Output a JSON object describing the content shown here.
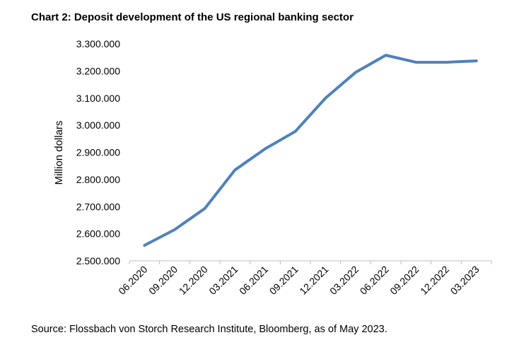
{
  "chart_data": {
    "type": "line",
    "title": "Chart 2: Deposit development of the US regional banking sector",
    "ylabel": "Million dollars",
    "xlabel": "",
    "categories": [
      "06.2020",
      "09.2020",
      "12.2020",
      "03.2021",
      "06.2021",
      "09.2021",
      "12.2021",
      "03.2022",
      "06.2022",
      "09.2022",
      "12.2022",
      "03.2023"
    ],
    "series": [
      {
        "values": [
          2557000,
          2615000,
          2693000,
          2835000,
          2913000,
          2977000,
          3100000,
          3195000,
          3258000,
          3232000,
          3232000,
          3237000
        ]
      }
    ],
    "ylim": [
      2500000,
      3300000
    ],
    "yticks": [
      2500000,
      2600000,
      2700000,
      2800000,
      2900000,
      3000000,
      3100000,
      3200000,
      3300000
    ],
    "ytick_labels": [
      "2.500.000",
      "2.600.000",
      "2.700.000",
      "2.800.000",
      "2.900.000",
      "3.000.000",
      "3.100.000",
      "3.200.000",
      "3.300.000"
    ],
    "grid": false,
    "line_color": "#4f81bd"
  },
  "source": "Source: Flossbach von Storch Research Institute, Bloomberg, as of May 2023."
}
